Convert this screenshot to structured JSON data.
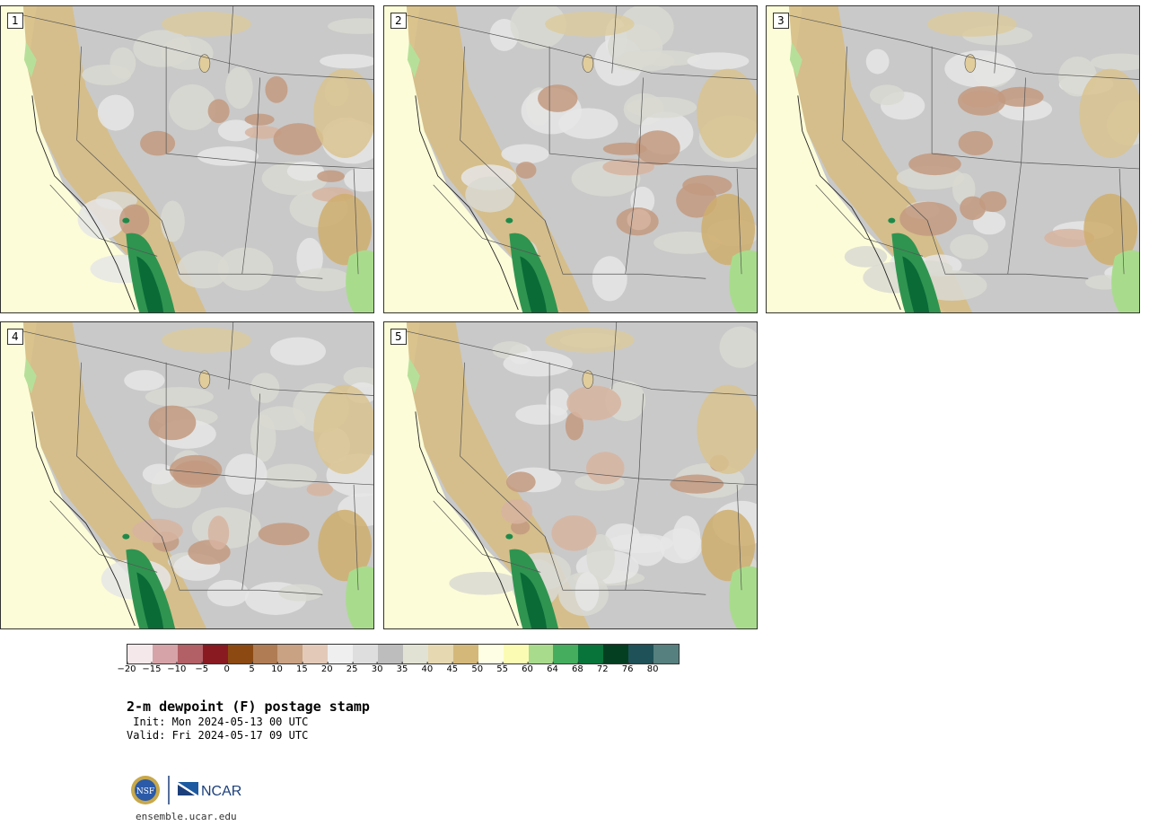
{
  "panels": [
    {
      "label": "1"
    },
    {
      "label": "2"
    },
    {
      "label": "3"
    },
    {
      "label": "4"
    },
    {
      "label": "5"
    }
  ],
  "legend": {
    "colors": [
      "#f5e8ea",
      "#d6a3a8",
      "#b35f66",
      "#8a1a22",
      "#8c4a12",
      "#b07c54",
      "#c9a183",
      "#e3cab8",
      "#efefef",
      "#dedede",
      "#bdbdbd",
      "#e2e2d4",
      "#e6d8b0",
      "#d4b87a",
      "#fefee4",
      "#fbfbb4",
      "#a8dc8c",
      "#44ad5e",
      "#09743a",
      "#053f22",
      "#1e5258",
      "#56807f"
    ],
    "ticks": [
      "−20",
      "−15",
      "−10",
      "−5",
      "0",
      "5",
      "10",
      "15",
      "20",
      "25",
      "30",
      "35",
      "40",
      "45",
      "50",
      "55",
      "60",
      "64",
      "68",
      "72",
      "76",
      "80"
    ]
  },
  "title": "2-m dewpoint (F) postage stamp",
  "init": " Init: Mon 2024-05-13 00 UTC",
  "valid": "Valid: Fri 2024-05-17 09 UTC",
  "logos": {
    "nsf": "NSF",
    "ncar": "NCAR"
  },
  "site": "ensemble.ucar.edu"
}
